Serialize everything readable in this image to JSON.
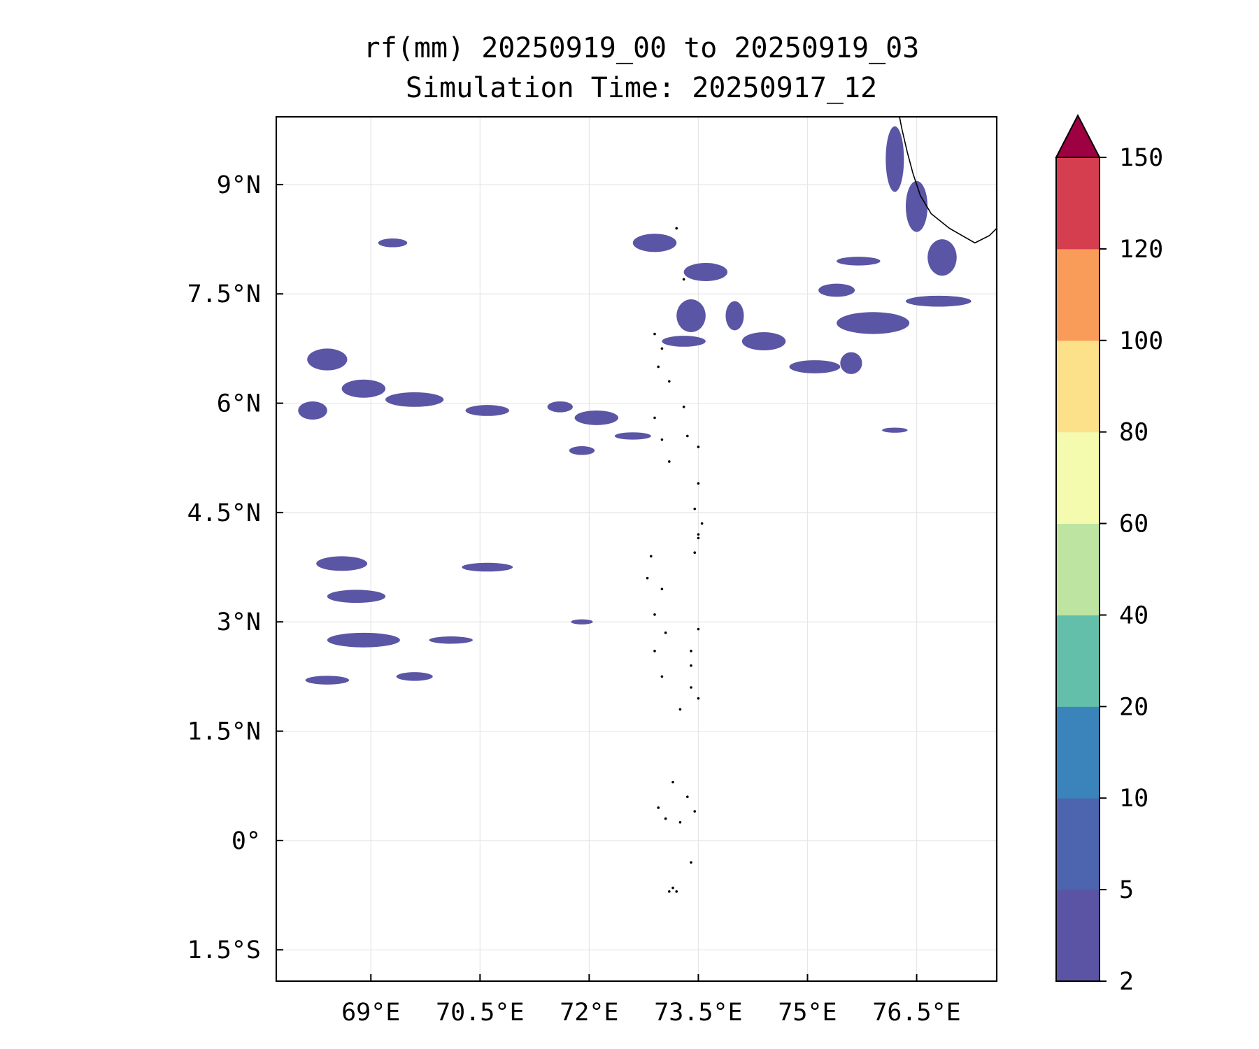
{
  "chart_data": {
    "type": "map",
    "title_line1": "rf(mm) 20250919_00 to 20250919_03",
    "title_line2": "Simulation Time: 20250917_12",
    "xlim": [
      67.7,
      77.6
    ],
    "ylim": [
      -1.93,
      9.93
    ],
    "x_ticks": [
      {
        "value": 69.0,
        "label": "69°E"
      },
      {
        "value": 70.5,
        "label": "70.5°E"
      },
      {
        "value": 72.0,
        "label": "72°E"
      },
      {
        "value": 73.5,
        "label": "73.5°E"
      },
      {
        "value": 75.0,
        "label": "75°E"
      },
      {
        "value": 76.5,
        "label": "76.5°E"
      }
    ],
    "y_ticks": [
      {
        "value": 9.0,
        "label": "9°N"
      },
      {
        "value": 7.5,
        "label": "7.5°N"
      },
      {
        "value": 6.0,
        "label": "6°N"
      },
      {
        "value": 4.5,
        "label": "4.5°N"
      },
      {
        "value": 3.0,
        "label": "3°N"
      },
      {
        "value": 1.5,
        "label": "1.5°N"
      },
      {
        "value": 0.0,
        "label": "0°"
      },
      {
        "value": -1.5,
        "label": "1.5°S"
      }
    ],
    "gridlines": true,
    "colorbar": {
      "levels": [
        2,
        5,
        10,
        20,
        40,
        60,
        80,
        100,
        120,
        150
      ],
      "labels": [
        "2",
        "5",
        "10",
        "20",
        "40",
        "60",
        "80",
        "100",
        "120",
        "150"
      ],
      "colors": [
        "#5b53a4",
        "#4d65ae",
        "#3a84bb",
        "#64bfaa",
        "#bde4a0",
        "#f4fbae",
        "#fde08a",
        "#fa9c59",
        "#d53e4f"
      ],
      "extend_color": "#9e0142",
      "extend": "max",
      "units": "mm"
    },
    "rain_color": "#5a55a5",
    "rain_patches": [
      {
        "lon": 68.4,
        "lat": 6.6,
        "w": 0.55,
        "h": 0.3
      },
      {
        "lon": 68.9,
        "lat": 6.2,
        "w": 0.6,
        "h": 0.25
      },
      {
        "lon": 69.6,
        "lat": 6.05,
        "w": 0.8,
        "h": 0.2
      },
      {
        "lon": 70.6,
        "lat": 5.9,
        "w": 0.6,
        "h": 0.15
      },
      {
        "lon": 71.6,
        "lat": 5.95,
        "w": 0.35,
        "h": 0.15
      },
      {
        "lon": 72.1,
        "lat": 5.8,
        "w": 0.6,
        "h": 0.2
      },
      {
        "lon": 72.6,
        "lat": 5.55,
        "w": 0.5,
        "h": 0.1
      },
      {
        "lon": 71.9,
        "lat": 5.35,
        "w": 0.35,
        "h": 0.12
      },
      {
        "lon": 68.2,
        "lat": 5.9,
        "w": 0.4,
        "h": 0.25
      },
      {
        "lon": 69.3,
        "lat": 8.2,
        "w": 0.4,
        "h": 0.12
      },
      {
        "lon": 68.6,
        "lat": 3.8,
        "w": 0.7,
        "h": 0.2
      },
      {
        "lon": 68.8,
        "lat": 3.35,
        "w": 0.8,
        "h": 0.18
      },
      {
        "lon": 70.6,
        "lat": 3.75,
        "w": 0.7,
        "h": 0.12
      },
      {
        "lon": 68.9,
        "lat": 2.75,
        "w": 1.0,
        "h": 0.2
      },
      {
        "lon": 70.1,
        "lat": 2.75,
        "w": 0.6,
        "h": 0.1
      },
      {
        "lon": 68.4,
        "lat": 2.2,
        "w": 0.6,
        "h": 0.12
      },
      {
        "lon": 69.6,
        "lat": 2.25,
        "w": 0.5,
        "h": 0.12
      },
      {
        "lon": 71.9,
        "lat": 3.0,
        "w": 0.3,
        "h": 0.07
      },
      {
        "lon": 72.9,
        "lat": 8.2,
        "w": 0.6,
        "h": 0.25
      },
      {
        "lon": 73.6,
        "lat": 7.8,
        "w": 0.6,
        "h": 0.25
      },
      {
        "lon": 73.4,
        "lat": 7.2,
        "w": 0.4,
        "h": 0.45
      },
      {
        "lon": 74.0,
        "lat": 7.2,
        "w": 0.25,
        "h": 0.4
      },
      {
        "lon": 73.3,
        "lat": 6.85,
        "w": 0.6,
        "h": 0.15
      },
      {
        "lon": 74.4,
        "lat": 6.85,
        "w": 0.6,
        "h": 0.25
      },
      {
        "lon": 75.1,
        "lat": 6.5,
        "w": 0.7,
        "h": 0.18
      },
      {
        "lon": 75.9,
        "lat": 7.1,
        "w": 1.0,
        "h": 0.3
      },
      {
        "lon": 76.8,
        "lat": 7.4,
        "w": 0.9,
        "h": 0.15
      },
      {
        "lon": 75.6,
        "lat": 6.55,
        "w": 0.3,
        "h": 0.3
      },
      {
        "lon": 76.2,
        "lat": 9.35,
        "w": 0.25,
        "h": 0.9
      },
      {
        "lon": 76.5,
        "lat": 8.7,
        "w": 0.3,
        "h": 0.7
      },
      {
        "lon": 76.85,
        "lat": 8.0,
        "w": 0.4,
        "h": 0.5
      },
      {
        "lon": 76.2,
        "lat": 5.63,
        "w": 0.35,
        "h": 0.07
      },
      {
        "lon": 75.7,
        "lat": 7.95,
        "w": 0.6,
        "h": 0.12
      },
      {
        "lon": 75.4,
        "lat": 7.55,
        "w": 0.5,
        "h": 0.18
      }
    ],
    "coastline": [
      [
        76.25,
        10.0
      ],
      [
        76.3,
        9.75
      ],
      [
        76.37,
        9.45
      ],
      [
        76.45,
        9.15
      ],
      [
        76.55,
        8.85
      ],
      [
        76.7,
        8.6
      ],
      [
        76.95,
        8.4
      ],
      [
        77.3,
        8.2
      ],
      [
        77.5,
        8.3
      ],
      [
        77.6,
        8.4
      ]
    ],
    "islands": [
      [
        72.9,
        6.95
      ],
      [
        73.0,
        6.75
      ],
      [
        72.95,
        6.5
      ],
      [
        73.1,
        6.3
      ],
      [
        73.3,
        5.95
      ],
      [
        72.9,
        5.8
      ],
      [
        73.0,
        5.5
      ],
      [
        73.35,
        5.55
      ],
      [
        73.5,
        5.4
      ],
      [
        73.1,
        5.2
      ],
      [
        73.5,
        4.9
      ],
      [
        73.45,
        4.55
      ],
      [
        73.55,
        4.35
      ],
      [
        73.5,
        4.15
      ],
      [
        73.45,
        3.95
      ],
      [
        72.85,
        3.9
      ],
      [
        72.8,
        3.6
      ],
      [
        73.0,
        3.45
      ],
      [
        72.9,
        3.1
      ],
      [
        73.05,
        2.85
      ],
      [
        73.5,
        2.9
      ],
      [
        73.4,
        2.6
      ],
      [
        72.9,
        2.6
      ],
      [
        73.4,
        2.4
      ],
      [
        73.0,
        2.25
      ],
      [
        73.4,
        2.1
      ],
      [
        73.5,
        1.95
      ],
      [
        73.25,
        1.8
      ],
      [
        73.15,
        0.8
      ],
      [
        73.35,
        0.6
      ],
      [
        72.95,
        0.45
      ],
      [
        73.05,
        0.3
      ],
      [
        73.25,
        0.25
      ],
      [
        73.45,
        0.4
      ],
      [
        73.4,
        -0.3
      ],
      [
        73.15,
        -0.65
      ],
      [
        73.2,
        -0.7
      ],
      [
        73.1,
        -0.7
      ],
      [
        73.5,
        4.2
      ],
      [
        73.3,
        7.7
      ],
      [
        73.2,
        8.4
      ]
    ]
  }
}
